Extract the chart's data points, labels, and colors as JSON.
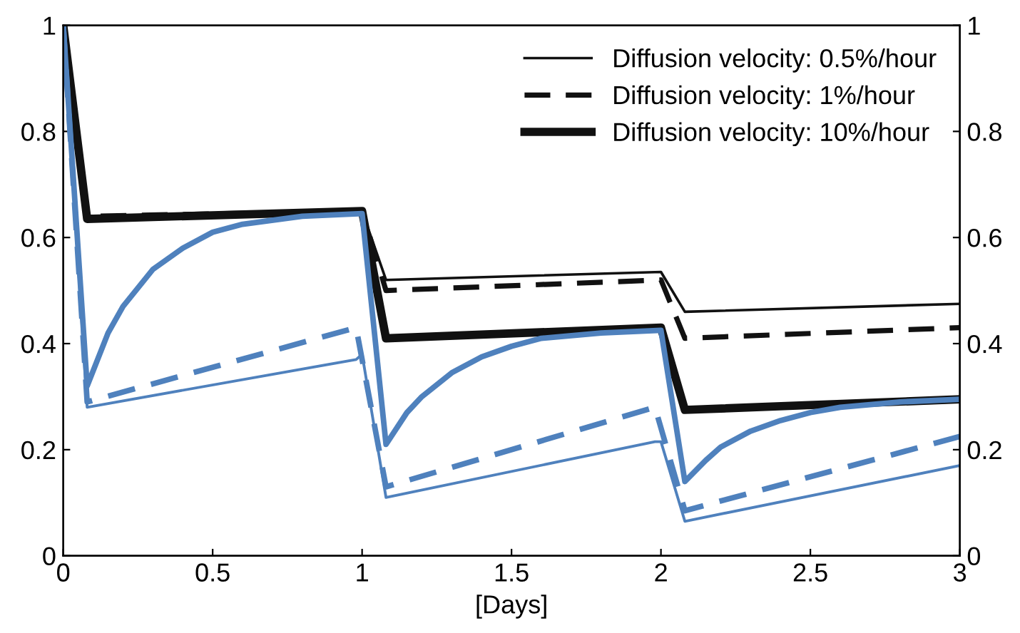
{
  "chart_data": {
    "type": "line",
    "xlabel": "[Days]",
    "xlim": [
      0,
      3
    ],
    "xticks": [
      0,
      0.5,
      1,
      1.5,
      2,
      2.5,
      3
    ],
    "ylim": [
      0,
      1
    ],
    "yticks": [
      0,
      0.2,
      0.4,
      0.6,
      0.8,
      1
    ],
    "y2lim": [
      0,
      1
    ],
    "y2ticks": [
      0,
      0.2,
      0.4,
      0.6,
      0.8,
      1
    ],
    "grid": false,
    "legend": "top right",
    "marker": "none",
    "series": [
      {
        "name": "Diffusion velocity: 0.5%/hour",
        "color": "#111111",
        "line_style": "solid",
        "x": [
          0,
          0.08,
          1.0,
          1.08,
          2.0,
          2.08,
          3.0
        ],
        "values": [
          1,
          0.64,
          0.65,
          0.52,
          0.535,
          0.46,
          0.475
        ]
      },
      {
        "name": "Diffusion velocity: 1%/hour",
        "color": "#111111",
        "line_style": "dashed",
        "x": [
          0,
          0.08,
          1.0,
          1.08,
          2.0,
          2.08,
          3.0
        ],
        "values": [
          1,
          0.64,
          0.65,
          0.5,
          0.52,
          0.41,
          0.43
        ]
      },
      {
        "name": "Diffusion velocity: 10%/hour",
        "color": "#111111",
        "line_style": "solid",
        "x": [
          0,
          0.08,
          1.0,
          1.08,
          2.0,
          2.08,
          3.0
        ],
        "values": [
          1,
          0.635,
          0.65,
          0.41,
          0.43,
          0.275,
          0.295
        ]
      },
      {
        "color": "#4f81bd",
        "line_style": "solid",
        "x": [
          0,
          0.08,
          0.98,
          1.0,
          1.08,
          1.98,
          2.0,
          2.08,
          3.0
        ],
        "values": [
          1,
          0.28,
          0.37,
          0.38,
          0.11,
          0.215,
          0.215,
          0.065,
          0.17
        ]
      },
      {
        "color": "#4f81bd",
        "line_style": "dashed",
        "x": [
          0,
          0.08,
          0.98,
          1.08,
          1.98,
          2.08,
          3.0
        ],
        "values": [
          1,
          0.29,
          0.43,
          0.13,
          0.28,
          0.085,
          0.225
        ]
      },
      {
        "color": "#4f81bd",
        "line_style": "solid",
        "x": [
          0,
          0.08,
          0.15,
          0.2,
          0.3,
          0.4,
          0.5,
          0.6,
          0.8,
          1.0,
          1.08,
          1.15,
          1.2,
          1.3,
          1.4,
          1.5,
          1.6,
          1.8,
          2.0,
          2.08,
          2.15,
          2.2,
          2.3,
          2.4,
          2.5,
          2.6,
          2.8,
          3.0
        ],
        "values": [
          1,
          0.32,
          0.42,
          0.47,
          0.54,
          0.58,
          0.61,
          0.625,
          0.64,
          0.645,
          0.21,
          0.27,
          0.3,
          0.345,
          0.375,
          0.395,
          0.41,
          0.42,
          0.425,
          0.14,
          0.18,
          0.205,
          0.235,
          0.255,
          0.27,
          0.28,
          0.29,
          0.295
        ]
      }
    ]
  }
}
